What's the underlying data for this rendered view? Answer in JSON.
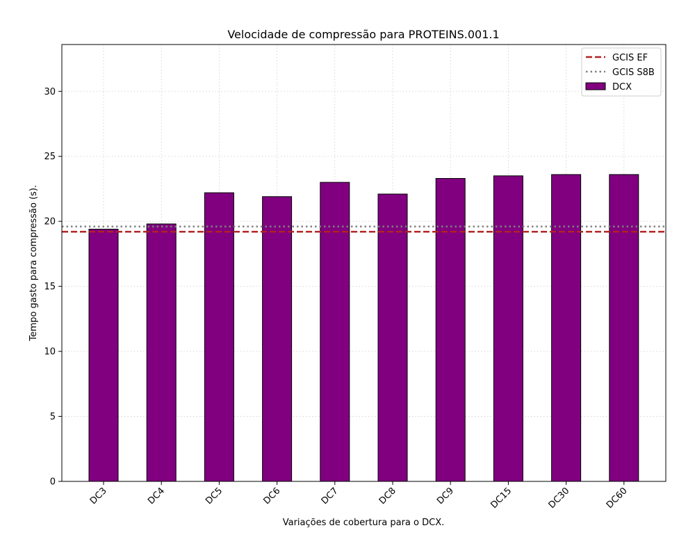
{
  "chart_data": {
    "type": "bar",
    "title": "Velocidade de compressão para  PROTEINS.001.1",
    "xlabel": "Variações de cobertura para o DCX.",
    "ylabel": "Tempo gasto para compressão (s).",
    "categories": [
      "DC3",
      "DC4",
      "DC5",
      "DC6",
      "DC7",
      "DC8",
      "DC9",
      "DC15",
      "DC30",
      "DC60"
    ],
    "series": [
      {
        "name": "DCX",
        "color": "#800080",
        "values": [
          19.4,
          19.8,
          22.2,
          21.9,
          23.0,
          22.1,
          23.3,
          23.5,
          23.6,
          23.6
        ]
      }
    ],
    "reference_lines": [
      {
        "name": "GCIS EF",
        "value": 19.2,
        "color": "#b22222",
        "style": "dashed"
      },
      {
        "name": "GCIS S8B",
        "value": 19.6,
        "color": "#808080",
        "style": "dotted"
      }
    ],
    "ylim": [
      0,
      33.6
    ],
    "yticks": [
      0,
      5,
      10,
      15,
      20,
      25,
      30
    ],
    "grid": true,
    "legend": {
      "position": "top-right",
      "entries": [
        "GCIS EF",
        "GCIS S8B",
        "DCX"
      ]
    }
  }
}
